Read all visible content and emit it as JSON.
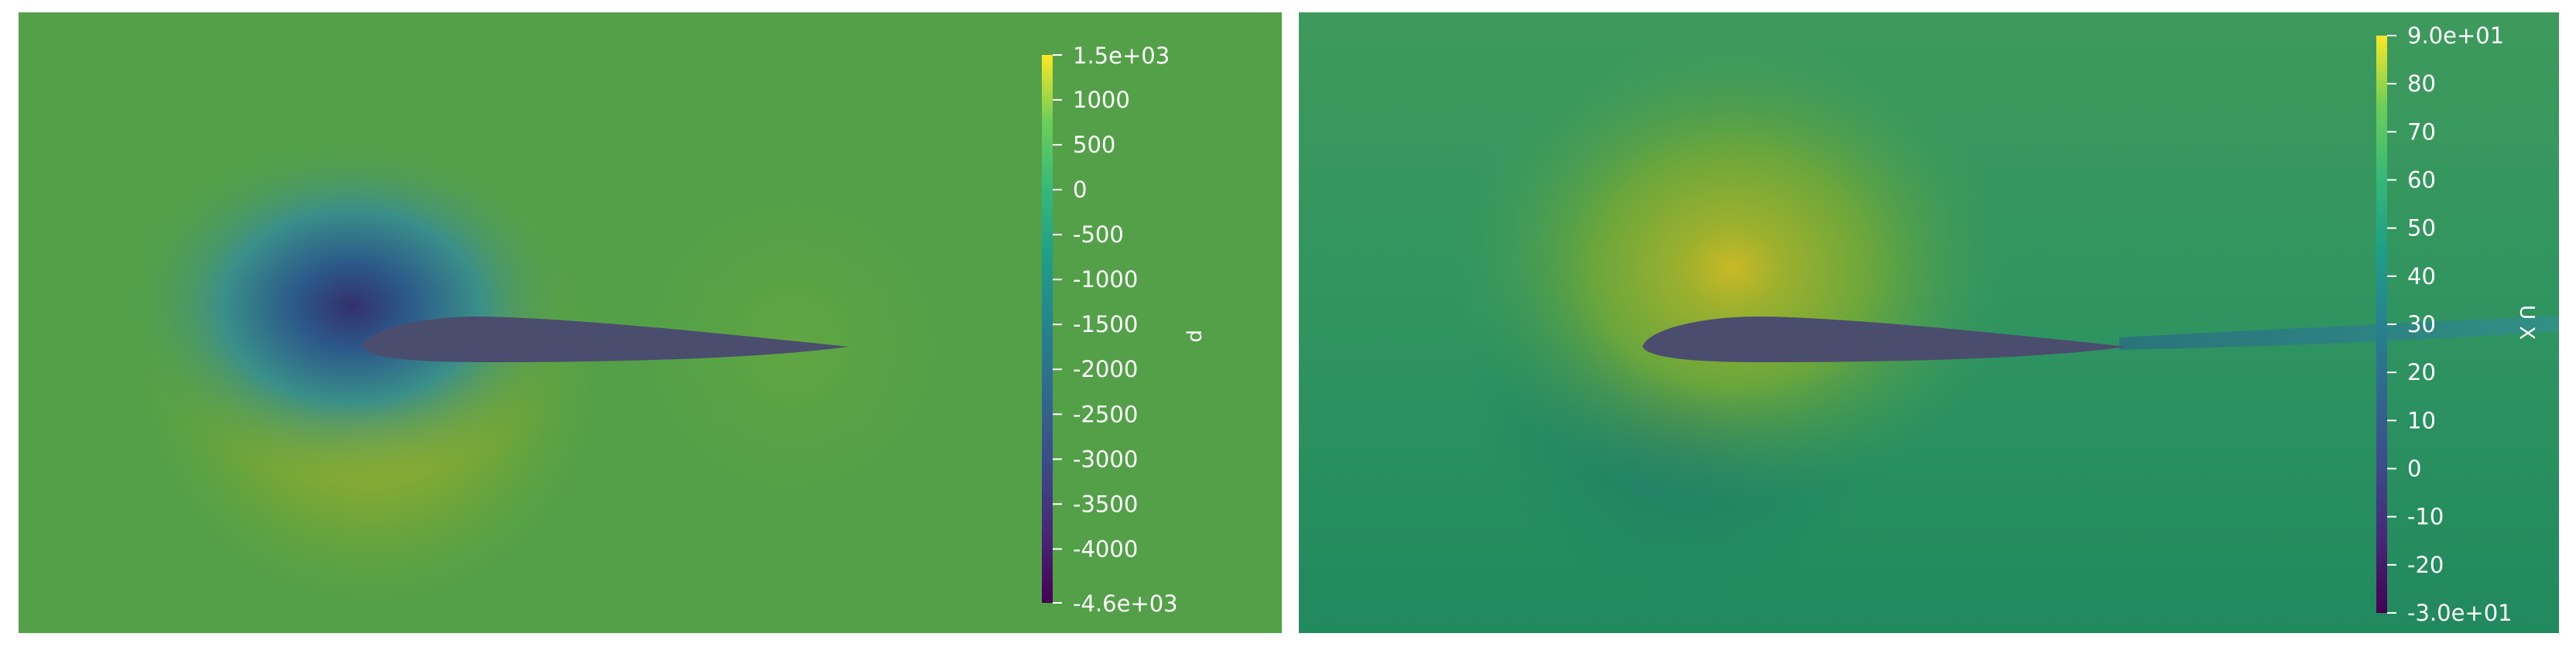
{
  "panels": [
    {
      "field": "p",
      "colorbar": {
        "title": "p",
        "max_label": "1.5e+03",
        "min_label": "-4.6e+03",
        "range": [
          -4600,
          1500
        ],
        "ticks": [
          "1000",
          "500",
          "0",
          "-500",
          "-1000",
          "-1500",
          "-2000",
          "-2500",
          "-3000",
          "-3500",
          "-4000"
        ],
        "tick_values": [
          1000,
          500,
          0,
          -500,
          -1000,
          -1500,
          -2000,
          -2500,
          -3000,
          -3500,
          -4000
        ]
      }
    },
    {
      "field": "U X",
      "colorbar": {
        "title": "U X",
        "max_label": "9.0e+01",
        "min_label": "-3.0e+01",
        "range": [
          -30,
          90
        ],
        "ticks": [
          "80",
          "70",
          "60",
          "50",
          "40",
          "30",
          "20",
          "10",
          "0",
          "-10",
          "-20"
        ],
        "tick_values": [
          80,
          70,
          60,
          50,
          40,
          30,
          20,
          10,
          0,
          -10,
          -20
        ]
      }
    }
  ],
  "colors": {
    "colormap": "viridis",
    "airfoil": "#4b4d6e",
    "text": "#ffffff",
    "background": "#ffffff"
  }
}
